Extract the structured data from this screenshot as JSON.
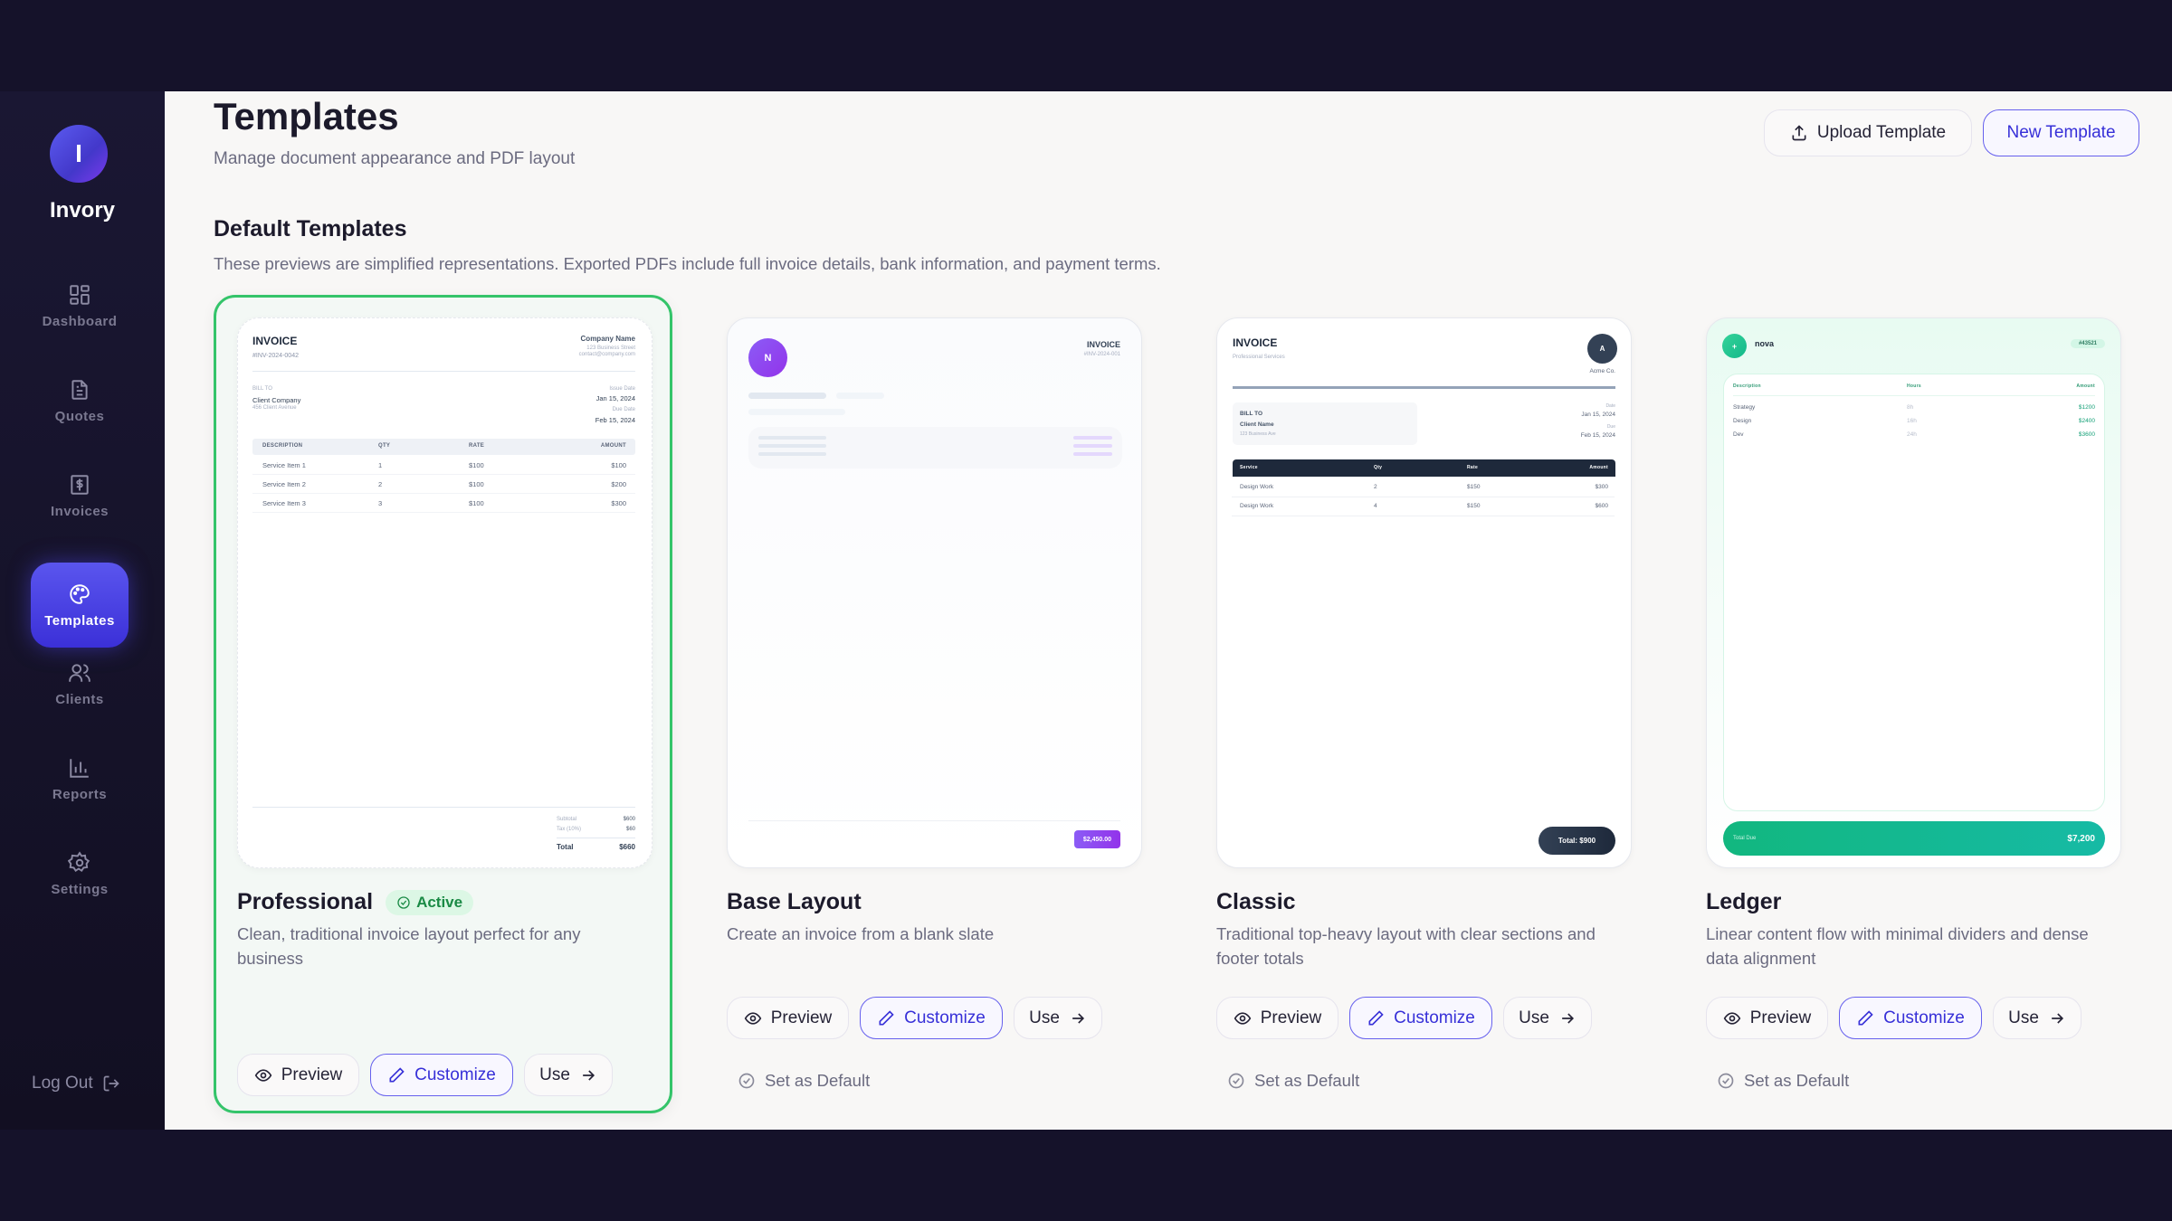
{
  "app": {
    "logo_letter": "I",
    "name": "Invory"
  },
  "sidebar": {
    "items": [
      {
        "label": "Dashboard",
        "icon": "dashboard-icon"
      },
      {
        "label": "Quotes",
        "icon": "document-icon"
      },
      {
        "label": "Invoices",
        "icon": "receipt-dollar-icon"
      },
      {
        "label": "Templates",
        "icon": "palette-icon",
        "active": true
      },
      {
        "label": "Clients",
        "icon": "users-icon"
      },
      {
        "label": "Reports",
        "icon": "bar-chart-icon"
      },
      {
        "label": "Settings",
        "icon": "gear-icon"
      }
    ],
    "logout": "Log Out"
  },
  "header": {
    "title": "Templates",
    "subtitle": "Manage document appearance and PDF layout",
    "upload": "Upload Template",
    "new": "New Template"
  },
  "section": {
    "title": "Default Templates",
    "description": "These previews are simplified representations. Exported PDFs include full invoice details, bank information, and payment terms."
  },
  "actions": {
    "preview": "Preview",
    "customize": "Customize",
    "use": "Use",
    "set_default": "Set as Default",
    "active": "Active"
  },
  "colors": {
    "accent": "#3730d8",
    "active": "#34c46a",
    "ledger": "#14b88a",
    "base": "#8b3fee",
    "classic": "#1e293b"
  },
  "templates": [
    {
      "name": "Professional",
      "description": "Clean, traditional invoice layout perfect for any business",
      "active": true,
      "preview": {
        "heading": "INVOICE",
        "number": "#INV-2024-0042",
        "company": "Company Name",
        "address": "123 Business Street",
        "email": "contact@company.com",
        "bill_to": "BILL TO",
        "client": "Client Company",
        "client_address": "456 Client Avenue",
        "issue_label": "Issue Date",
        "issue": "Jan 15, 2024",
        "due_label": "Due Date",
        "due": "Feb 15, 2024",
        "columns": [
          "DESCRIPTION",
          "QTY",
          "RATE",
          "AMOUNT"
        ],
        "rows": [
          [
            "Service Item 1",
            "1",
            "$100",
            "$100"
          ],
          [
            "Service Item 2",
            "2",
            "$100",
            "$200"
          ],
          [
            "Service Item 3",
            "3",
            "$100",
            "$300"
          ]
        ],
        "subtotal_label": "Subtotal",
        "subtotal": "$600",
        "tax_label": "Tax (10%)",
        "tax": "$60",
        "total_label": "Total",
        "total": "$660"
      }
    },
    {
      "name": "Base Layout",
      "description": "Create an invoice from a blank slate",
      "preview": {
        "avatar": "N",
        "heading": "INVOICE",
        "number": "#INV-2024-001",
        "total": "$2,450.00"
      }
    },
    {
      "name": "Classic",
      "description": "Traditional top-heavy layout with clear sections and footer totals",
      "preview": {
        "heading": "INVOICE",
        "tagline": "Professional Services",
        "avatar": "A",
        "company": "Acme Co.",
        "bill_to": "BILL TO",
        "client": "Client Name",
        "client_address": "123 Business Ave",
        "date_label": "Date",
        "date": "Jan 15, 2024",
        "due_label": "Due",
        "due": "Feb 15, 2024",
        "columns": [
          "Service",
          "Qty",
          "Rate",
          "Amount"
        ],
        "rows": [
          [
            "Design Work",
            "2",
            "$150",
            "$300"
          ],
          [
            "Design Work",
            "4",
            "$150",
            "$600"
          ]
        ],
        "total": "Total: $900"
      }
    },
    {
      "name": "Ledger",
      "description": "Linear content flow with minimal dividers and dense data alignment",
      "preview": {
        "brand": "nova",
        "number": "#43521",
        "columns": [
          "Description",
          "Hours",
          "Amount"
        ],
        "rows": [
          [
            "Strategy",
            "8h",
            "$1200"
          ],
          [
            "Design",
            "16h",
            "$2400"
          ],
          [
            "Dev",
            "24h",
            "$3600"
          ]
        ],
        "total_label": "Total Due",
        "total": "$7,200"
      }
    }
  ]
}
